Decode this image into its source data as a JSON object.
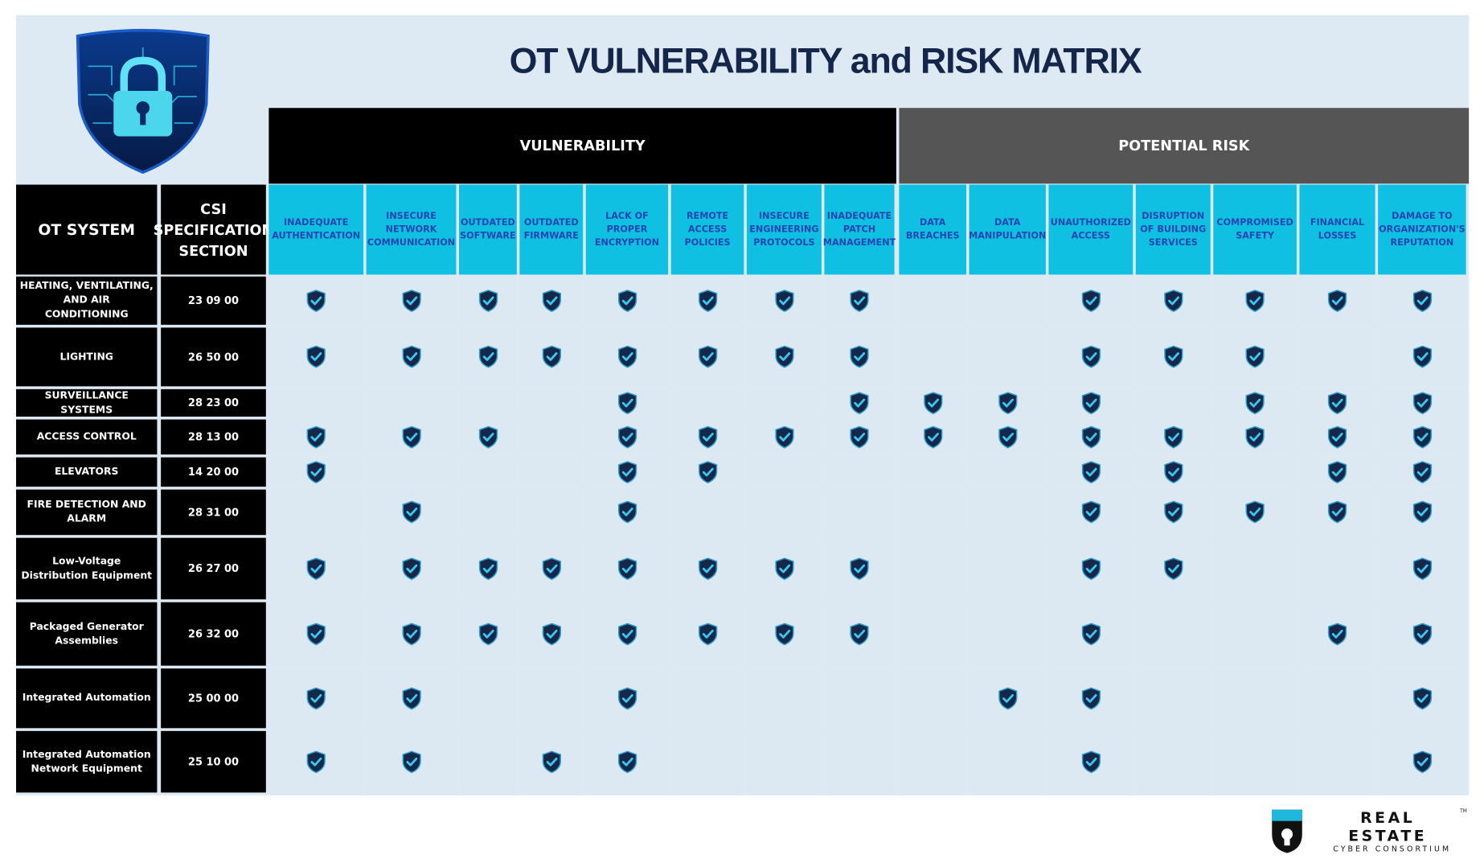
{
  "header": {
    "title": "OT VULNERABILITY and RISK MATRIX"
  },
  "table": {
    "row_headers": [
      "OT SYSTEM",
      "CSI SPECIFICATION SECTION"
    ],
    "groups": [
      {
        "label": "VULNERABILITY",
        "columns": [
          "INADEQUATE AUTHENTICATION",
          "INSECURE NETWORK COMMUNICATION",
          "OUTDATED SOFTWARE",
          "OUTDATED FIRMWARE",
          "LACK OF PROPER ENCRYPTION",
          "REMOTE ACCESS POLICIES",
          "INSECURE ENGINEERING PROTOCOLS",
          "INADEQUATE PATCH MANAGEMENT"
        ]
      },
      {
        "label": "POTENTIAL RISK",
        "columns": [
          "DATA BREACHES",
          "DATA MANIPULATION",
          "UNAUTHORIZED ACCESS",
          "DISRUPTION OF BUILDING SERVICES",
          "COMPROMISED SAFETY",
          "FINANCIAL LOSSES",
          "DAMAGE TO ORGANIZATION'S REPUTATION"
        ]
      }
    ],
    "rows": [
      {
        "system": "HEATING, VENTILATING, AND AIR CONDITIONING",
        "csi": "23 09 00",
        "marks": [
          [
            true,
            true,
            true,
            true,
            true,
            true,
            true,
            true
          ],
          [
            false,
            false,
            true,
            true,
            true,
            true,
            true
          ]
        ]
      },
      {
        "system": "LIGHTING",
        "csi": "26 50 00",
        "marks": [
          [
            true,
            true,
            true,
            true,
            true,
            true,
            true,
            true
          ],
          [
            false,
            false,
            true,
            true,
            true,
            false,
            true
          ]
        ]
      },
      {
        "system": "SURVEILLANCE SYSTEMS",
        "csi": "28 23 00",
        "marks": [
          [
            false,
            false,
            false,
            false,
            true,
            false,
            false,
            true
          ],
          [
            true,
            true,
            true,
            false,
            true,
            true,
            true
          ]
        ]
      },
      {
        "system": "ACCESS CONTROL",
        "csi": "28 13 00",
        "marks": [
          [
            true,
            true,
            true,
            false,
            true,
            true,
            true,
            true
          ],
          [
            true,
            true,
            true,
            true,
            true,
            true,
            true
          ]
        ]
      },
      {
        "system": "ELEVATORS",
        "csi": "14 20 00",
        "marks": [
          [
            true,
            false,
            false,
            false,
            true,
            true,
            false,
            false
          ],
          [
            false,
            false,
            true,
            true,
            false,
            true,
            true
          ]
        ]
      },
      {
        "system": "FIRE DETECTION AND ALARM",
        "csi": "28 31 00",
        "marks": [
          [
            false,
            true,
            false,
            false,
            true,
            false,
            false,
            false
          ],
          [
            false,
            false,
            true,
            true,
            true,
            true,
            true
          ]
        ]
      },
      {
        "system": "Low-Voltage Distribution Equipment",
        "csi": "26 27 00",
        "marks": [
          [
            true,
            true,
            true,
            true,
            true,
            true,
            true,
            true
          ],
          [
            false,
            false,
            true,
            true,
            false,
            false,
            true
          ]
        ]
      },
      {
        "system": "Packaged Generator Assemblies",
        "csi": "26 32 00",
        "marks": [
          [
            true,
            true,
            true,
            true,
            true,
            true,
            true,
            true
          ],
          [
            false,
            false,
            true,
            false,
            false,
            true,
            true
          ]
        ]
      },
      {
        "system": "Integrated Automation",
        "csi": "25 00 00",
        "marks": [
          [
            true,
            true,
            false,
            false,
            true,
            false,
            false,
            false
          ],
          [
            false,
            true,
            true,
            false,
            false,
            false,
            true
          ]
        ]
      },
      {
        "system": "Integrated Automation Network Equipment",
        "csi": "25 10 00",
        "marks": [
          [
            true,
            true,
            false,
            true,
            true,
            false,
            false,
            false
          ],
          [
            false,
            false,
            true,
            false,
            false,
            false,
            true
          ]
        ]
      }
    ]
  },
  "logo": {
    "name": "REAL ESTATE",
    "tagline": "CYBER CONSORTIUM",
    "trademark": "TM"
  }
}
